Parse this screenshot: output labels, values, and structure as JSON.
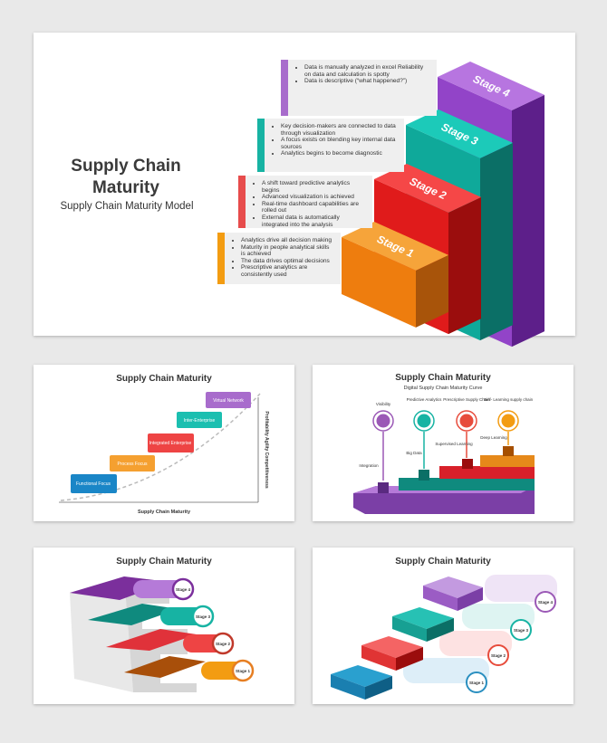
{
  "main": {
    "title": "Supply Chain Maturity",
    "subtitle": "Supply Chain Maturity Model",
    "stages": [
      {
        "label": "Stage 1",
        "bullets": [
          "Analytics drive all decision making",
          "Maturity in people analytical skills is achieved",
          "The data drives optimal decisions",
          "Prescriptive analytics are consistently used"
        ]
      },
      {
        "label": "Stage 2",
        "bullets": [
          "A shift toward predictive analytics begins",
          "Advanced visualization is achieved",
          "Real-time dashboard capabilities are rolled out",
          "External data is automatically integrated into the analysis"
        ]
      },
      {
        "label": "Stage 3",
        "bullets": [
          "Key decision-makers are connected to data through visualization",
          "A focus exists on blending key internal data sources",
          "Analytics begins to become diagnostic"
        ]
      },
      {
        "label": "Stage 4",
        "bullets": [
          "Data is manually analyzed in excel Reliability on data and calculation is spotty",
          "Data is descriptive (“what happened?”)"
        ]
      }
    ]
  },
  "thumbs": [
    {
      "title": "Supply Chain Maturity",
      "steps": [
        "Functional Focus",
        "Process Focus",
        "Integrated Enterprise",
        "Inter-Enterprise",
        "Virtual Network"
      ],
      "x_axis": "Supply Chain Maturity",
      "y_axis": "Profitability Agility Competitiveness"
    },
    {
      "title": "Supply Chain Maturity",
      "subtitle": "Digital Supply Chain Maturity Curve",
      "top_labels": [
        "Visibility",
        "Predictive Analytics",
        "Prescriptive Supply Chain",
        "Self- Learning supply chain"
      ],
      "step_labels": [
        "Integration",
        "Big Data",
        "Supervised Learning",
        "Deep Learning"
      ]
    },
    {
      "title": "Supply Chain Maturity",
      "stages": [
        "Stage 4",
        "Stage 3",
        "Stage 2",
        "Stage 1"
      ]
    },
    {
      "title": "Supply Chain Maturity",
      "stages": [
        "Stage 4",
        "Stage 3",
        "Stage 2",
        "Stage 1"
      ]
    }
  ]
}
